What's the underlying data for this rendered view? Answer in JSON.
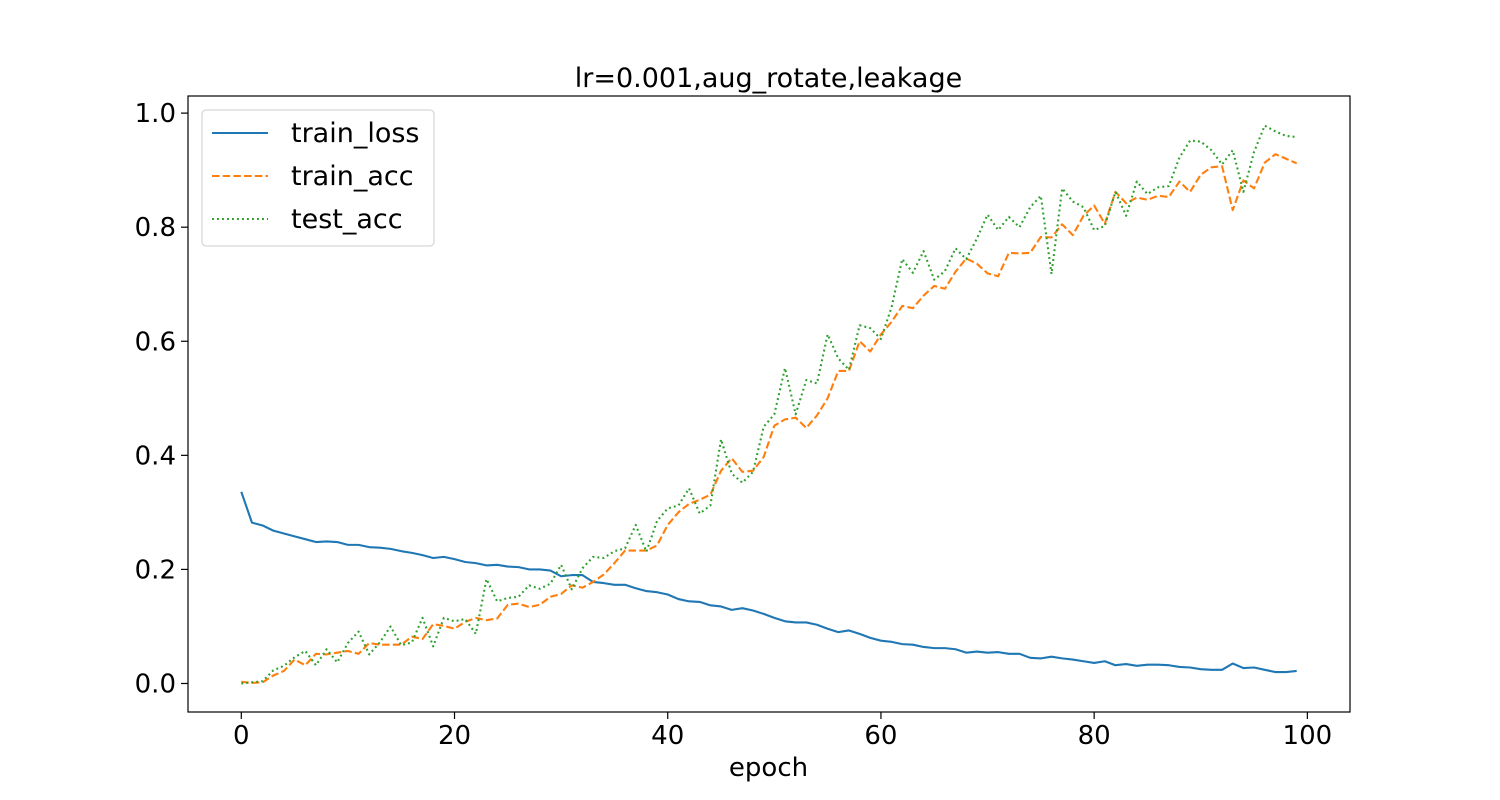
{
  "chart_data": {
    "type": "line",
    "title": "lr=0.001,aug_rotate,leakage",
    "xlabel": "epoch",
    "ylabel": "",
    "xlim": [
      -5,
      104
    ],
    "ylim": [
      -0.05,
      1.03
    ],
    "xticks": [
      0,
      20,
      40,
      60,
      80,
      100
    ],
    "yticks": [
      0.0,
      0.2,
      0.4,
      0.6,
      0.8,
      1.0
    ],
    "x_tick_labels": [
      "0",
      "20",
      "40",
      "60",
      "80",
      "100"
    ],
    "y_tick_labels": [
      "0.0",
      "0.2",
      "0.4",
      "0.6",
      "0.8",
      "1.0"
    ],
    "grid": false,
    "legend": {
      "position": "top-left",
      "entries": [
        "train_loss",
        "train_acc",
        "test_acc"
      ]
    },
    "x_start": 0,
    "series": [
      {
        "name": "train_loss",
        "color": "#1f77b4",
        "dash": "solid",
        "values": [
          0.336,
          0.282,
          0.277,
          0.268,
          0.263,
          0.258,
          0.253,
          0.248,
          0.249,
          0.248,
          0.243,
          0.243,
          0.239,
          0.238,
          0.236,
          0.232,
          0.229,
          0.225,
          0.22,
          0.222,
          0.218,
          0.213,
          0.211,
          0.207,
          0.208,
          0.205,
          0.204,
          0.2,
          0.2,
          0.198,
          0.188,
          0.19,
          0.19,
          0.178,
          0.176,
          0.173,
          0.173,
          0.167,
          0.162,
          0.16,
          0.156,
          0.148,
          0.144,
          0.143,
          0.137,
          0.135,
          0.129,
          0.132,
          0.128,
          0.122,
          0.115,
          0.109,
          0.107,
          0.107,
          0.103,
          0.096,
          0.09,
          0.093,
          0.087,
          0.08,
          0.075,
          0.073,
          0.069,
          0.068,
          0.064,
          0.062,
          0.062,
          0.06,
          0.054,
          0.056,
          0.054,
          0.055,
          0.052,
          0.052,
          0.045,
          0.044,
          0.047,
          0.044,
          0.042,
          0.039,
          0.036,
          0.039,
          0.032,
          0.034,
          0.031,
          0.033,
          0.033,
          0.032,
          0.029,
          0.028,
          0.025,
          0.024,
          0.024,
          0.035,
          0.027,
          0.028,
          0.024,
          0.02,
          0.02,
          0.022
        ]
      },
      {
        "name": "train_acc",
        "color": "#ff7f0e",
        "dash": "dashed",
        "values": [
          0.003,
          0.001,
          0.002,
          0.014,
          0.022,
          0.042,
          0.032,
          0.052,
          0.051,
          0.054,
          0.057,
          0.052,
          0.071,
          0.068,
          0.068,
          0.068,
          0.082,
          0.078,
          0.104,
          0.101,
          0.096,
          0.108,
          0.115,
          0.111,
          0.114,
          0.138,
          0.14,
          0.134,
          0.138,
          0.152,
          0.157,
          0.172,
          0.168,
          0.178,
          0.191,
          0.211,
          0.233,
          0.233,
          0.233,
          0.242,
          0.278,
          0.3,
          0.315,
          0.322,
          0.331,
          0.373,
          0.395,
          0.371,
          0.373,
          0.397,
          0.452,
          0.463,
          0.466,
          0.448,
          0.47,
          0.5,
          0.548,
          0.548,
          0.6,
          0.582,
          0.612,
          0.634,
          0.662,
          0.658,
          0.68,
          0.697,
          0.692,
          0.722,
          0.745,
          0.736,
          0.719,
          0.714,
          0.755,
          0.754,
          0.755,
          0.783,
          0.782,
          0.805,
          0.786,
          0.82,
          0.838,
          0.806,
          0.862,
          0.842,
          0.852,
          0.848,
          0.855,
          0.853,
          0.88,
          0.862,
          0.892,
          0.905,
          0.907,
          0.83,
          0.882,
          0.868,
          0.913,
          0.928,
          0.92,
          0.912
        ]
      },
      {
        "name": "test_acc",
        "color": "#2ca02c",
        "dash": "dotted",
        "values": [
          0.0,
          0.002,
          0.004,
          0.023,
          0.031,
          0.046,
          0.057,
          0.032,
          0.06,
          0.037,
          0.071,
          0.091,
          0.051,
          0.072,
          0.1,
          0.067,
          0.072,
          0.115,
          0.065,
          0.115,
          0.109,
          0.113,
          0.087,
          0.183,
          0.144,
          0.15,
          0.152,
          0.172,
          0.166,
          0.175,
          0.208,
          0.165,
          0.202,
          0.222,
          0.22,
          0.232,
          0.237,
          0.278,
          0.231,
          0.285,
          0.307,
          0.312,
          0.342,
          0.298,
          0.312,
          0.428,
          0.368,
          0.352,
          0.371,
          0.45,
          0.472,
          0.553,
          0.472,
          0.532,
          0.526,
          0.612,
          0.57,
          0.55,
          0.628,
          0.623,
          0.604,
          0.66,
          0.744,
          0.72,
          0.758,
          0.708,
          0.723,
          0.763,
          0.744,
          0.78,
          0.822,
          0.795,
          0.818,
          0.8,
          0.835,
          0.855,
          0.718,
          0.868,
          0.845,
          0.835,
          0.795,
          0.802,
          0.862,
          0.82,
          0.88,
          0.858,
          0.87,
          0.872,
          0.922,
          0.952,
          0.95,
          0.935,
          0.91,
          0.935,
          0.862,
          0.932,
          0.978,
          0.968,
          0.96,
          0.958
        ]
      }
    ]
  }
}
